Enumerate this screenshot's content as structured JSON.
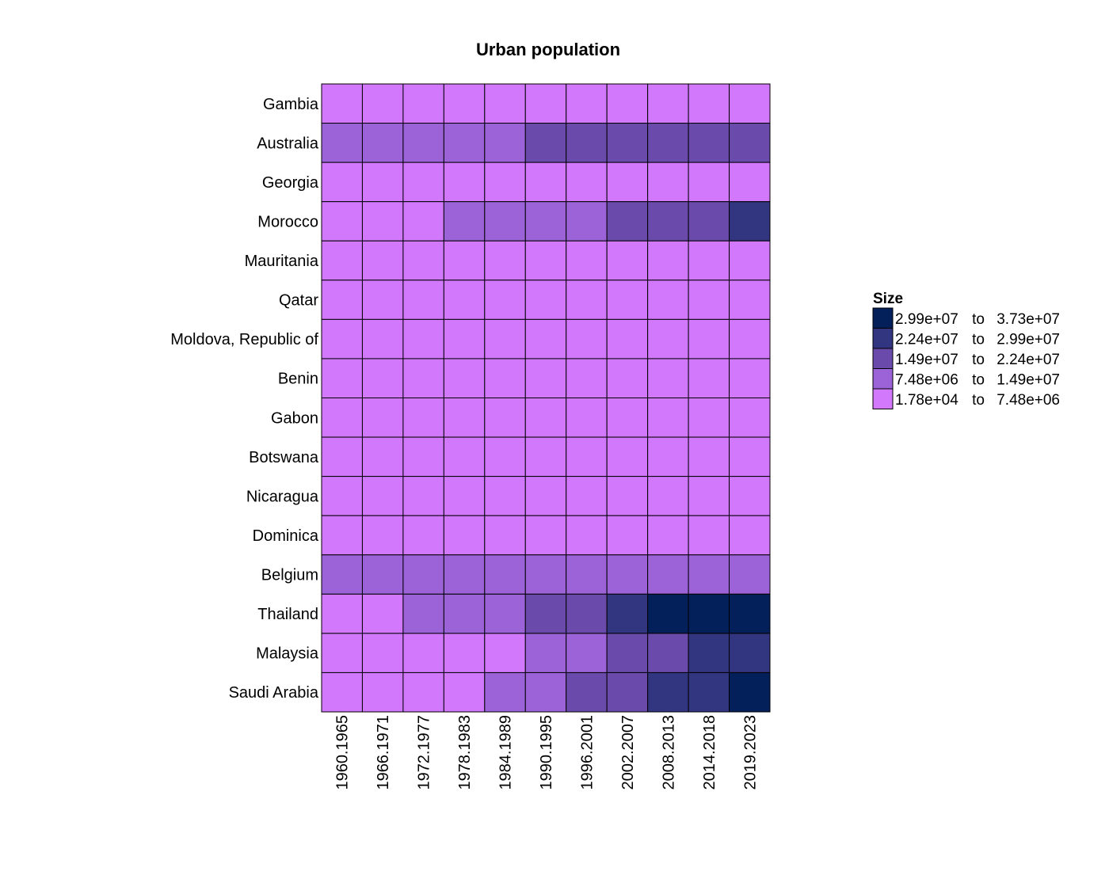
{
  "chart_data": {
    "type": "heatmap",
    "title": "Urban population",
    "xlabel": "",
    "ylabel": "",
    "x_categories": [
      "1960.1965",
      "1966.1971",
      "1972.1977",
      "1978.1983",
      "1984.1989",
      "1990.1995",
      "1996.2001",
      "2002.2007",
      "2008.2013",
      "2014.2018",
      "2019.2023"
    ],
    "y_categories": [
      "Gambia",
      "Australia",
      "Georgia",
      "Morocco",
      "Mauritania",
      "Qatar",
      "Moldova, Republic of",
      "Benin",
      "Gabon",
      "Botswana",
      "Nicaragua",
      "Dominica",
      "Belgium",
      "Thailand",
      "Malaysia",
      "Saudi Arabia"
    ],
    "value_bins": [
      {
        "label_from": "2.99e+07",
        "label_to": "3.73e+07",
        "color": "#03205a"
      },
      {
        "label_from": "2.24e+07",
        "label_to": "2.99e+07",
        "color": "#32357f"
      },
      {
        "label_from": "1.49e+07",
        "label_to": "2.24e+07",
        "color": "#6a4bab"
      },
      {
        "label_from": "7.48e+06",
        "label_to": "1.49e+07",
        "color": "#9c63d8"
      },
      {
        "label_from": "1.78e+04",
        "label_to": "7.48e+06",
        "color": "#d178fd"
      }
    ],
    "cell_bins": [
      [
        4,
        4,
        4,
        4,
        4,
        4,
        4,
        4,
        4,
        4,
        4
      ],
      [
        3,
        3,
        3,
        3,
        3,
        2,
        2,
        2,
        2,
        2,
        2
      ],
      [
        4,
        4,
        4,
        4,
        4,
        4,
        4,
        4,
        4,
        4,
        4
      ],
      [
        4,
        4,
        4,
        3,
        3,
        3,
        3,
        2,
        2,
        2,
        1
      ],
      [
        4,
        4,
        4,
        4,
        4,
        4,
        4,
        4,
        4,
        4,
        4
      ],
      [
        4,
        4,
        4,
        4,
        4,
        4,
        4,
        4,
        4,
        4,
        4
      ],
      [
        4,
        4,
        4,
        4,
        4,
        4,
        4,
        4,
        4,
        4,
        4
      ],
      [
        4,
        4,
        4,
        4,
        4,
        4,
        4,
        4,
        4,
        4,
        4
      ],
      [
        4,
        4,
        4,
        4,
        4,
        4,
        4,
        4,
        4,
        4,
        4
      ],
      [
        4,
        4,
        4,
        4,
        4,
        4,
        4,
        4,
        4,
        4,
        4
      ],
      [
        4,
        4,
        4,
        4,
        4,
        4,
        4,
        4,
        4,
        4,
        4
      ],
      [
        4,
        4,
        4,
        4,
        4,
        4,
        4,
        4,
        4,
        4,
        4
      ],
      [
        3,
        3,
        3,
        3,
        3,
        3,
        3,
        3,
        3,
        3,
        3
      ],
      [
        4,
        4,
        3,
        3,
        3,
        2,
        2,
        1,
        0,
        0,
        0
      ],
      [
        4,
        4,
        4,
        4,
        4,
        3,
        3,
        2,
        2,
        1,
        1
      ],
      [
        4,
        4,
        4,
        4,
        3,
        3,
        2,
        2,
        1,
        1,
        0
      ]
    ],
    "legend": {
      "title": "Size",
      "connector": "to",
      "position": "right"
    },
    "grid": false
  }
}
